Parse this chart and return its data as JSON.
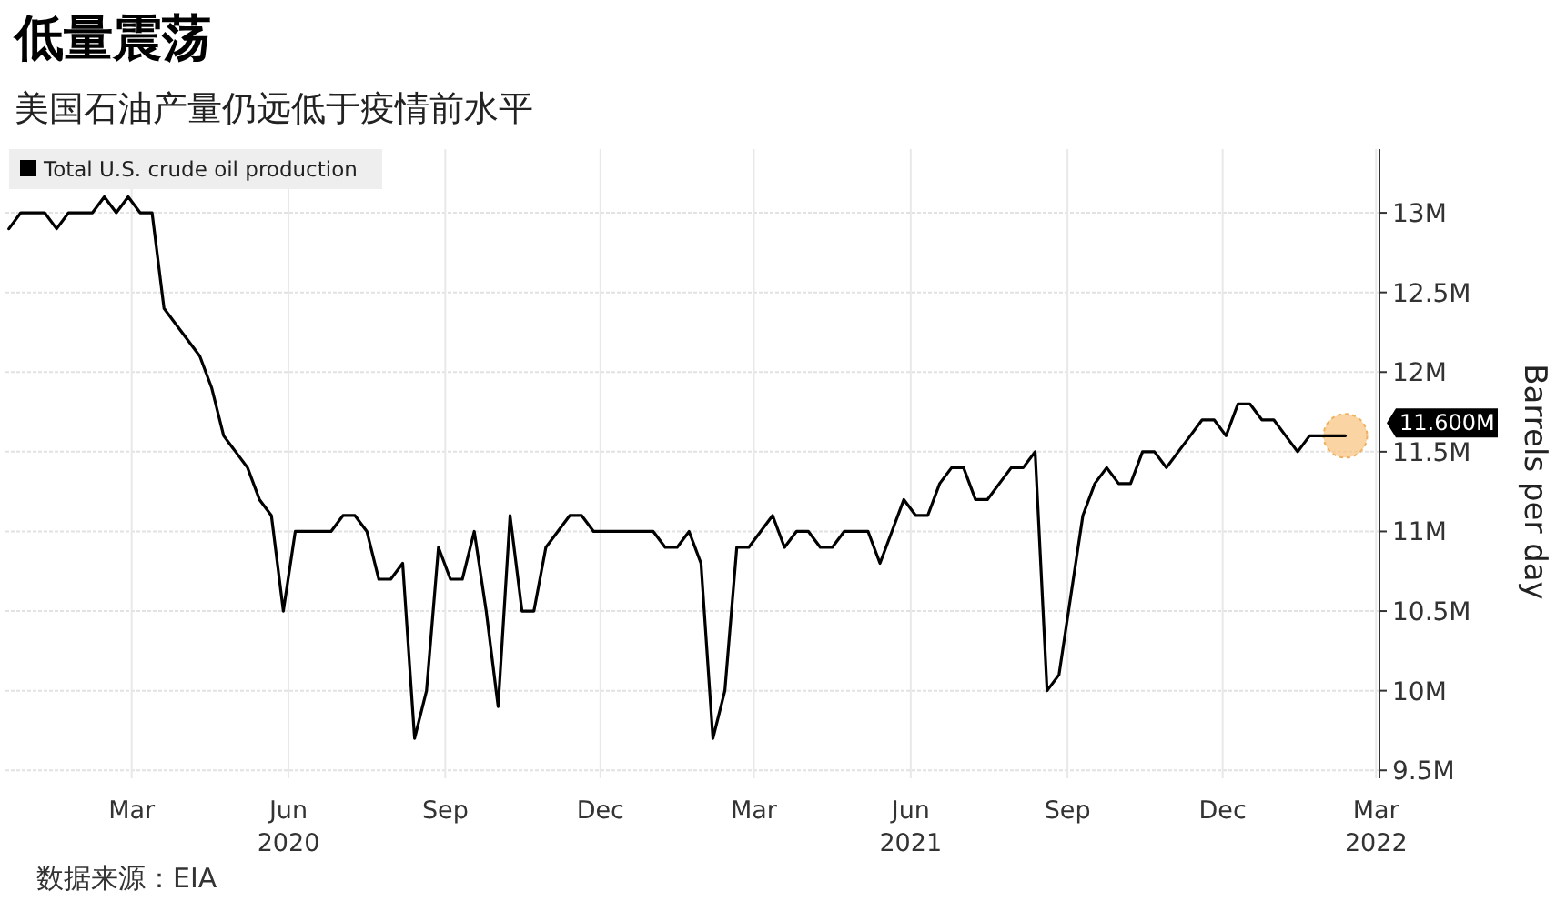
{
  "chart_data": {
    "type": "line",
    "title": "低量震荡",
    "subtitle": "美国石油产量仍远低于疫情前水平",
    "ylabel": "Barrels per day",
    "x": [
      "2020-01-03",
      "2020-01-10",
      "2020-01-17",
      "2020-01-24",
      "2020-01-31",
      "2020-02-07",
      "2020-02-14",
      "2020-02-21",
      "2020-02-28",
      "2020-03-06",
      "2020-03-13",
      "2020-03-20",
      "2020-03-27",
      "2020-04-03",
      "2020-04-10",
      "2020-04-17",
      "2020-04-24",
      "2020-05-01",
      "2020-05-08",
      "2020-05-15",
      "2020-05-22",
      "2020-05-29",
      "2020-06-05",
      "2020-06-12",
      "2020-06-19",
      "2020-06-26",
      "2020-07-03",
      "2020-07-10",
      "2020-07-17",
      "2020-07-24",
      "2020-07-31",
      "2020-08-07",
      "2020-08-14",
      "2020-08-21",
      "2020-08-28",
      "2020-09-04",
      "2020-09-11",
      "2020-09-18",
      "2020-09-25",
      "2020-10-02",
      "2020-10-09",
      "2020-10-16",
      "2020-10-23",
      "2020-10-30",
      "2020-11-06",
      "2020-11-13",
      "2020-11-20",
      "2020-11-27",
      "2020-12-04",
      "2020-12-11",
      "2020-12-18",
      "2020-12-25",
      "2021-01-01",
      "2021-01-08",
      "2021-01-15",
      "2021-01-22",
      "2021-01-29",
      "2021-02-05",
      "2021-02-12",
      "2021-02-19",
      "2021-02-26",
      "2021-03-05",
      "2021-03-12",
      "2021-03-19",
      "2021-03-26",
      "2021-04-02",
      "2021-04-09",
      "2021-04-16",
      "2021-04-23",
      "2021-04-30",
      "2021-05-07",
      "2021-05-14",
      "2021-05-21",
      "2021-05-28",
      "2021-06-04",
      "2021-06-11",
      "2021-06-18",
      "2021-06-25",
      "2021-07-02",
      "2021-07-09",
      "2021-07-16",
      "2021-07-23",
      "2021-07-30",
      "2021-08-06",
      "2021-08-13",
      "2021-08-20",
      "2021-08-27",
      "2021-09-03",
      "2021-09-10",
      "2021-09-17",
      "2021-09-24",
      "2021-10-01",
      "2021-10-08",
      "2021-10-15",
      "2021-10-22",
      "2021-10-29",
      "2021-11-05",
      "2021-11-12",
      "2021-11-19",
      "2021-11-26",
      "2021-12-03",
      "2021-12-10",
      "2021-12-17",
      "2021-12-24",
      "2021-12-31",
      "2022-01-07",
      "2022-01-14",
      "2022-01-21",
      "2022-01-28",
      "2022-02-04",
      "2022-02-11",
      "2022-02-18",
      "2022-02-25"
    ],
    "series": [
      {
        "name": "Total U.S. crude oil production",
        "color": "#000000",
        "values": [
          12.9,
          13.0,
          13.0,
          13.0,
          12.9,
          13.0,
          13.0,
          13.0,
          13.1,
          13.0,
          13.1,
          13.0,
          13.0,
          12.4,
          12.3,
          12.2,
          12.1,
          11.9,
          11.6,
          11.5,
          11.4,
          11.2,
          11.1,
          10.5,
          11.0,
          11.0,
          11.0,
          11.0,
          11.1,
          11.1,
          11.0,
          10.7,
          10.7,
          10.8,
          9.7,
          10.0,
          10.9,
          10.7,
          10.7,
          11.0,
          10.5,
          9.9,
          11.1,
          10.5,
          10.5,
          10.9,
          11.0,
          11.1,
          11.1,
          11.0,
          11.0,
          11.0,
          11.0,
          11.0,
          11.0,
          10.9,
          10.9,
          11.0,
          10.8,
          9.7,
          10.0,
          10.9,
          10.9,
          11.0,
          11.1,
          10.9,
          11.0,
          11.0,
          10.9,
          10.9,
          11.0,
          11.0,
          11.0,
          10.8,
          11.0,
          11.2,
          11.1,
          11.1,
          11.3,
          11.4,
          11.4,
          11.2,
          11.2,
          11.3,
          11.4,
          11.4,
          11.5,
          10.0,
          10.1,
          10.6,
          11.1,
          11.3,
          11.4,
          11.3,
          11.3,
          11.5,
          11.5,
          11.4,
          11.5,
          11.6,
          11.7,
          11.7,
          11.6,
          11.8,
          11.8,
          11.7,
          11.7,
          11.6,
          11.5,
          11.6,
          11.6,
          11.6,
          11.6
        ]
      }
    ],
    "xlim": [
      "2020-01-01",
      "2022-03-17"
    ],
    "xticks": [
      {
        "value": "2020-03-15",
        "label": "Mar"
      },
      {
        "value": "2020-06-15",
        "label": "Jun\n2020"
      },
      {
        "value": "2020-09-15",
        "label": "Sep"
      },
      {
        "value": "2020-12-15",
        "label": "Dec"
      },
      {
        "value": "2021-03-15",
        "label": "Mar"
      },
      {
        "value": "2021-06-15",
        "label": "Jun\n2021"
      },
      {
        "value": "2021-09-15",
        "label": "Sep"
      },
      {
        "value": "2021-12-15",
        "label": "Dec"
      },
      {
        "value": "2022-03-15",
        "label": "Mar\n2022"
      }
    ],
    "ylim": [
      9.45,
      13.4
    ],
    "yticks": [
      {
        "value": 9.5,
        "label": "9.5M"
      },
      {
        "value": 10,
        "label": "10M"
      },
      {
        "value": 10.5,
        "label": "10.5M"
      },
      {
        "value": 11,
        "label": "11M"
      },
      {
        "value": 11.5,
        "label": "11.5M"
      },
      {
        "value": 12,
        "label": "12M"
      },
      {
        "value": 12.5,
        "label": "12.5M"
      },
      {
        "value": 13,
        "label": "13M"
      }
    ],
    "grid": true,
    "legend": "top left",
    "marker": "none",
    "line_style": "solid",
    "annotations": [
      {
        "text": "11.600M",
        "x": "2022-02-25",
        "y": 11.6
      },
      "数据来源：EIA"
    ]
  }
}
